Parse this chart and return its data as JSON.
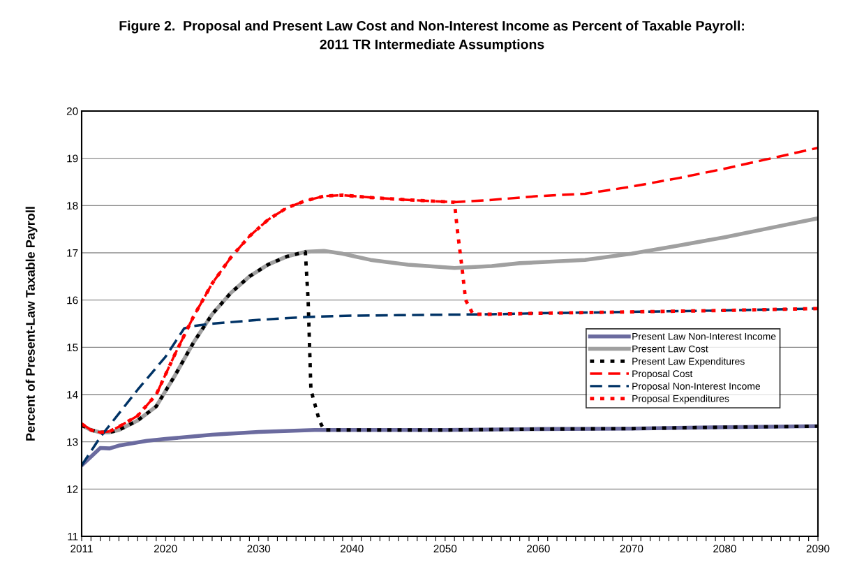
{
  "chart_data": {
    "type": "line",
    "title": "Figure 2.  Proposal and Present Law Cost and Non-Interest Income as Percent of Taxable Payroll:\n2011 TR Intermediate Assumptions",
    "ylabel": "Percent of Present-Law Taxable Payroll",
    "xlim": [
      2011,
      2090
    ],
    "ylim": [
      11,
      20
    ],
    "xticks": [
      2011,
      {
        "value": 2012,
        "label": null
      },
      {
        "value": 2013,
        "label": null
      },
      {
        "value": 2014,
        "label": null
      },
      {
        "value": 2015,
        "label": null
      },
      {
        "value": 2016,
        "label": null
      },
      {
        "value": 2017,
        "label": null
      },
      {
        "value": 2018,
        "label": null
      },
      {
        "value": 2019,
        "label": null
      },
      2020,
      {
        "value": 2021,
        "label": null
      },
      {
        "value": 2022,
        "label": null
      },
      {
        "value": 2023,
        "label": null
      },
      {
        "value": 2024,
        "label": null
      },
      {
        "value": 2025,
        "label": null
      },
      {
        "value": 2026,
        "label": null
      },
      {
        "value": 2027,
        "label": null
      },
      {
        "value": 2028,
        "label": null
      },
      {
        "value": 2029,
        "label": null
      },
      2030,
      {
        "value": 2031,
        "label": null
      },
      {
        "value": 2032,
        "label": null
      },
      {
        "value": 2033,
        "label": null
      },
      {
        "value": 2034,
        "label": null
      },
      {
        "value": 2035,
        "label": null
      },
      {
        "value": 2036,
        "label": null
      },
      {
        "value": 2037,
        "label": null
      },
      {
        "value": 2038,
        "label": null
      },
      {
        "value": 2039,
        "label": null
      },
      2040,
      {
        "value": 2041,
        "label": null
      },
      {
        "value": 2042,
        "label": null
      },
      {
        "value": 2043,
        "label": null
      },
      {
        "value": 2044,
        "label": null
      },
      {
        "value": 2045,
        "label": null
      },
      {
        "value": 2046,
        "label": null
      },
      {
        "value": 2047,
        "label": null
      },
      {
        "value": 2048,
        "label": null
      },
      {
        "value": 2049,
        "label": null
      },
      2050,
      {
        "value": 2051,
        "label": null
      },
      {
        "value": 2052,
        "label": null
      },
      {
        "value": 2053,
        "label": null
      },
      {
        "value": 2054,
        "label": null
      },
      {
        "value": 2055,
        "label": null
      },
      {
        "value": 2056,
        "label": null
      },
      {
        "value": 2057,
        "label": null
      },
      {
        "value": 2058,
        "label": null
      },
      {
        "value": 2059,
        "label": null
      },
      2060,
      {
        "value": 2061,
        "label": null
      },
      {
        "value": 2062,
        "label": null
      },
      {
        "value": 2063,
        "label": null
      },
      {
        "value": 2064,
        "label": null
      },
      {
        "value": 2065,
        "label": null
      },
      {
        "value": 2066,
        "label": null
      },
      {
        "value": 2067,
        "label": null
      },
      {
        "value": 2068,
        "label": null
      },
      {
        "value": 2069,
        "label": null
      },
      2070,
      {
        "value": 2071,
        "label": null
      },
      {
        "value": 2072,
        "label": null
      },
      {
        "value": 2073,
        "label": null
      },
      {
        "value": 2074,
        "label": null
      },
      {
        "value": 2075,
        "label": null
      },
      {
        "value": 2076,
        "label": null
      },
      {
        "value": 2077,
        "label": null
      },
      {
        "value": 2078,
        "label": null
      },
      {
        "value": 2079,
        "label": null
      },
      2080,
      {
        "value": 2081,
        "label": null
      },
      {
        "value": 2082,
        "label": null
      },
      {
        "value": 2083,
        "label": null
      },
      {
        "value": 2084,
        "label": null
      },
      {
        "value": 2085,
        "label": null
      },
      {
        "value": 2086,
        "label": null
      },
      {
        "value": 2087,
        "label": null
      },
      {
        "value": 2088,
        "label": null
      },
      {
        "value": 2089,
        "label": null
      },
      2090
    ],
    "yticks": [
      11,
      12,
      13,
      14,
      15,
      16,
      17,
      18,
      19,
      20
    ],
    "grid": "y",
    "legend": "right",
    "marker": "none",
    "series": [
      {
        "name": "Present Law Non-Interest Income",
        "color": "#6b6b9f",
        "line_style": "solid",
        "x": [
          2011,
          2013,
          2014,
          2015,
          2018,
          2020,
          2025,
          2030,
          2036,
          2050,
          2060,
          2070,
          2080,
          2090
        ],
        "values": [
          12.5,
          12.87,
          12.86,
          12.92,
          13.02,
          13.06,
          13.15,
          13.21,
          13.25,
          13.25,
          13.27,
          13.28,
          13.31,
          13.33
        ]
      },
      {
        "name": "Present Law Cost",
        "color": "#a0a0a0",
        "line_style": "solid",
        "x": [
          2011,
          2012,
          2013,
          2014,
          2015,
          2017,
          2019,
          2021,
          2023,
          2025,
          2027,
          2029,
          2031,
          2033,
          2035,
          2037,
          2039,
          2042,
          2046,
          2051,
          2055,
          2058,
          2065,
          2070,
          2075,
          2080,
          2085,
          2090
        ],
        "values": [
          13.35,
          13.25,
          13.2,
          13.2,
          13.25,
          13.45,
          13.75,
          14.4,
          15.1,
          15.7,
          16.15,
          16.5,
          16.75,
          16.92,
          17.02,
          17.04,
          16.98,
          16.85,
          16.75,
          16.68,
          16.72,
          16.78,
          16.85,
          16.98,
          17.15,
          17.33,
          17.53,
          17.73
        ]
      },
      {
        "name": "Present Law Expenditures",
        "color": "#000000",
        "line_style": "dotted",
        "x": [
          2011,
          2012,
          2013,
          2014,
          2015,
          2017,
          2019,
          2021,
          2023,
          2025,
          2027,
          2029,
          2031,
          2033,
          2035,
          2035.3,
          2035.6,
          2036.5,
          2037,
          2050,
          2060,
          2070,
          2080,
          2090
        ],
        "values": [
          13.35,
          13.25,
          13.2,
          13.2,
          13.25,
          13.45,
          13.75,
          14.4,
          15.1,
          15.7,
          16.15,
          16.5,
          16.75,
          16.92,
          17.02,
          16.0,
          14.1,
          13.45,
          13.25,
          13.25,
          13.27,
          13.28,
          13.31,
          13.33
        ]
      },
      {
        "name": "Proposal Cost",
        "color": "#ff0000",
        "line_style": "dashed",
        "x": [
          2011,
          2012,
          2013,
          2014,
          2015,
          2017,
          2019,
          2021,
          2023,
          2025,
          2027,
          2029,
          2031,
          2033,
          2035,
          2037,
          2039,
          2042,
          2046,
          2051,
          2055,
          2060,
          2065,
          2070,
          2075,
          2080,
          2085,
          2090
        ],
        "values": [
          13.38,
          13.25,
          13.2,
          13.22,
          13.32,
          13.55,
          14.0,
          14.85,
          15.65,
          16.35,
          16.9,
          17.35,
          17.7,
          17.95,
          18.1,
          18.2,
          18.22,
          18.17,
          18.12,
          18.07,
          18.12,
          18.2,
          18.25,
          18.4,
          18.58,
          18.78,
          19.0,
          19.22
        ]
      },
      {
        "name": "Proposal Non-Interest Income",
        "color": "#003366",
        "line_style": "dashed",
        "x": [
          2011,
          2012,
          2013,
          2015,
          2017,
          2020,
          2022,
          2023,
          2025,
          2030,
          2035,
          2040,
          2045,
          2050,
          2055,
          2060,
          2070,
          2080,
          2090
        ],
        "values": [
          12.5,
          12.8,
          13.1,
          13.6,
          14.1,
          14.8,
          15.4,
          15.45,
          15.5,
          15.58,
          15.64,
          15.67,
          15.68,
          15.69,
          15.7,
          15.72,
          15.75,
          15.78,
          15.82
        ]
      },
      {
        "name": "Proposal Expenditures",
        "color": "#ff0000",
        "line_style": "dotted",
        "x": [
          2011,
          2012,
          2013,
          2014,
          2015,
          2017,
          2019,
          2021,
          2023,
          2025,
          2027,
          2029,
          2031,
          2033,
          2035,
          2037,
          2039,
          2042,
          2046,
          2051,
          2051.3,
          2051.8,
          2052.2,
          2053,
          2055,
          2060,
          2070,
          2080,
          2090
        ],
        "values": [
          13.38,
          13.25,
          13.2,
          13.22,
          13.32,
          13.55,
          14.0,
          14.85,
          15.65,
          16.35,
          16.9,
          17.35,
          17.7,
          17.95,
          18.1,
          18.2,
          18.22,
          18.17,
          18.12,
          18.07,
          17.5,
          16.7,
          16.0,
          15.7,
          15.7,
          15.72,
          15.75,
          15.78,
          15.82
        ]
      }
    ]
  }
}
